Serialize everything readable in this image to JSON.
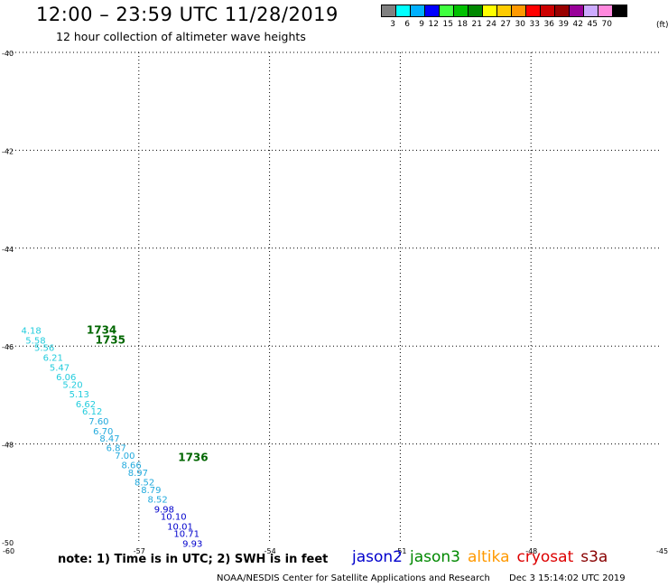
{
  "header": {
    "title": "12:00 – 23:59 UTC 11/28/2019",
    "subtitle": "12 hour collection of altimeter wave heights"
  },
  "color_scale": {
    "unit": "(ft)",
    "bins": [
      {
        "label": "3",
        "color": "#808080"
      },
      {
        "label": "6",
        "color": "#00ffff"
      },
      {
        "label": "9",
        "color": "#00b0ff"
      },
      {
        "label": "12",
        "color": "#0000ff"
      },
      {
        "label": "15",
        "color": "#40ff40"
      },
      {
        "label": "18",
        "color": "#00c000"
      },
      {
        "label": "21",
        "color": "#008800"
      },
      {
        "label": "24",
        "color": "#ffff00"
      },
      {
        "label": "27",
        "color": "#ffcc00"
      },
      {
        "label": "30",
        "color": "#ff9900"
      },
      {
        "label": "33",
        "color": "#ff0000"
      },
      {
        "label": "36",
        "color": "#cc0000"
      },
      {
        "label": "39",
        "color": "#990000"
      },
      {
        "label": "42",
        "color": "#990099"
      },
      {
        "label": "45",
        "color": "#ccaaff"
      },
      {
        "label": "70",
        "color": "#ff88dd"
      },
      {
        "label": "",
        "color": "#000000"
      }
    ]
  },
  "map": {
    "lat_labels": [
      "-40",
      "-42",
      "-44",
      "-46",
      "-48",
      "-50"
    ],
    "lon_labels": [
      "-60",
      "-57",
      "-54",
      "-51",
      "-48",
      "-45"
    ],
    "lat_range": [
      -50,
      -40
    ],
    "lon_range": [
      -60,
      -45
    ]
  },
  "observations": [
    {
      "lon": -59.7,
      "lat": -45.75,
      "swh": "4.18",
      "color": "#22ccdd"
    },
    {
      "lon": -59.6,
      "lat": -45.95,
      "swh": "5.58",
      "color": "#22ccdd"
    },
    {
      "lon": -59.4,
      "lat": -46.1,
      "swh": "5.56",
      "color": "#22ccdd"
    },
    {
      "lon": -59.2,
      "lat": -46.3,
      "swh": "6.21",
      "color": "#22ccdd"
    },
    {
      "lon": -59.05,
      "lat": -46.5,
      "swh": "5.47",
      "color": "#22ccdd"
    },
    {
      "lon": -58.9,
      "lat": -46.7,
      "swh": "6.06",
      "color": "#22ccdd"
    },
    {
      "lon": -58.75,
      "lat": -46.85,
      "swh": "5.20",
      "color": "#22ccdd"
    },
    {
      "lon": -58.6,
      "lat": -47.05,
      "swh": "5.13",
      "color": "#22ccdd"
    },
    {
      "lon": -58.45,
      "lat": -47.25,
      "swh": "6.62",
      "color": "#22ccdd"
    },
    {
      "lon": -58.3,
      "lat": -47.4,
      "swh": "6.12",
      "color": "#22ccdd"
    },
    {
      "lon": -58.15,
      "lat": -47.6,
      "swh": "7.60",
      "color": "#22aadd"
    },
    {
      "lon": -58.05,
      "lat": -47.8,
      "swh": "6.70",
      "color": "#22aadd"
    },
    {
      "lon": -57.9,
      "lat": -47.95,
      "swh": "8.47",
      "color": "#22aadd"
    },
    {
      "lon": -57.75,
      "lat": -48.15,
      "swh": "6.87",
      "color": "#22aadd"
    },
    {
      "lon": -57.55,
      "lat": -48.3,
      "swh": "7.00",
      "color": "#22aadd"
    },
    {
      "lon": -57.4,
      "lat": -48.5,
      "swh": "8.66",
      "color": "#22aadd"
    },
    {
      "lon": -57.25,
      "lat": -48.65,
      "swh": "8.97",
      "color": "#22aadd"
    },
    {
      "lon": -57.1,
      "lat": -48.85,
      "swh": "8.52",
      "color": "#22aadd"
    },
    {
      "lon": -56.95,
      "lat": -49.0,
      "swh": "8.79",
      "color": "#22aadd"
    },
    {
      "lon": -56.8,
      "lat": -49.2,
      "swh": "8.52",
      "color": "#22aadd"
    },
    {
      "lon": -56.65,
      "lat": -49.4,
      "swh": "9.98",
      "color": "#0000cc"
    },
    {
      "lon": -56.5,
      "lat": -49.55,
      "swh": "10.10",
      "color": "#0000cc"
    },
    {
      "lon": -56.35,
      "lat": -49.75,
      "swh": "10.01",
      "color": "#0000cc"
    },
    {
      "lon": -56.2,
      "lat": -49.9,
      "swh": "10.71",
      "color": "#0000cc"
    },
    {
      "lon": -56.0,
      "lat": -50.1,
      "swh": "9.93",
      "color": "#0000cc"
    }
  ],
  "time_labels": [
    {
      "lon": -58.2,
      "lat": -45.75,
      "text": "1734",
      "color": "#006600"
    },
    {
      "lon": -58.0,
      "lat": -45.95,
      "text": "1735",
      "color": "#006600"
    },
    {
      "lon": -56.1,
      "lat": -48.35,
      "text": "1736",
      "color": "#006600"
    }
  ],
  "note": "note:  1) Time is in UTC;  2) SWH is in feet",
  "satellites": [
    {
      "name": "jason2",
      "color": "#0000cc"
    },
    {
      "name": "jason3",
      "color": "#008800"
    },
    {
      "name": "altika",
      "color": "#ff9900"
    },
    {
      "name": "cryosat",
      "color": "#dd0000"
    },
    {
      "name": "s3a",
      "color": "#880000"
    }
  ],
  "footer": {
    "credit": "NOAA/NESDIS Center for Satellite Applications and Research",
    "timestamp": "Dec  3 15:14:02 UTC 2019"
  }
}
